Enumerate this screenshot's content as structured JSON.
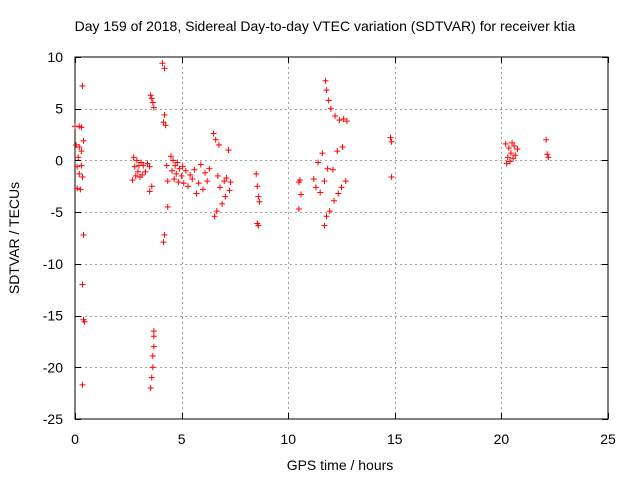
{
  "chart_data": {
    "type": "scatter",
    "title": "Day 159 of 2018, Sidereal Day-to-day VTEC variation (SDTVAR) for receiver ktia",
    "xlabel": "GPS time / hours",
    "ylabel": "SDTVAR / TECUs",
    "xlim": [
      0,
      25
    ],
    "ylim": [
      -25,
      10
    ],
    "xticks": [
      0,
      5,
      10,
      15,
      20,
      25
    ],
    "yticks": [
      -25,
      -20,
      -15,
      -10,
      -5,
      0,
      5,
      10
    ],
    "grid": true,
    "legend": "none",
    "marker": "plus",
    "series": [
      {
        "name": "ktia",
        "color": "#ff0000",
        "points": [
          [
            0.0,
            3.3
          ],
          [
            0.05,
            1.5
          ],
          [
            0.1,
            -0.6
          ],
          [
            0.1,
            -2.7
          ],
          [
            0.15,
            0.3
          ],
          [
            0.2,
            3.3
          ],
          [
            0.2,
            1.3
          ],
          [
            0.2,
            -1.3
          ],
          [
            0.25,
            -2.8
          ],
          [
            0.3,
            3.2
          ],
          [
            0.3,
            0.9
          ],
          [
            0.3,
            -0.5
          ],
          [
            0.35,
            7.2
          ],
          [
            0.35,
            -1.6
          ],
          [
            0.35,
            -12.0
          ],
          [
            0.35,
            -21.7
          ],
          [
            0.4,
            1.9
          ],
          [
            0.4,
            -7.2
          ],
          [
            0.4,
            -15.4
          ],
          [
            0.45,
            -15.6
          ],
          [
            2.7,
            -1.9
          ],
          [
            2.75,
            0.3
          ],
          [
            2.8,
            -0.6
          ],
          [
            2.85,
            -1.5
          ],
          [
            2.9,
            0.0
          ],
          [
            2.95,
            -1.1
          ],
          [
            3.0,
            -0.5
          ],
          [
            3.05,
            -1.6
          ],
          [
            3.1,
            -0.2
          ],
          [
            3.15,
            -1.4
          ],
          [
            3.2,
            -0.5
          ],
          [
            3.3,
            -1.1
          ],
          [
            3.4,
            -0.3
          ],
          [
            3.5,
            -0.6
          ],
          [
            3.5,
            -3.0
          ],
          [
            3.55,
            6.3
          ],
          [
            3.55,
            -22.0
          ],
          [
            3.6,
            6.0
          ],
          [
            3.6,
            -2.5
          ],
          [
            3.6,
            -21.0
          ],
          [
            3.65,
            5.6
          ],
          [
            3.65,
            -20.0
          ],
          [
            3.65,
            -18.9
          ],
          [
            3.7,
            5.1
          ],
          [
            3.7,
            -18.0
          ],
          [
            3.7,
            -17.0
          ],
          [
            3.7,
            -16.5
          ],
          [
            4.1,
            9.4
          ],
          [
            4.15,
            3.7
          ],
          [
            4.15,
            -7.9
          ],
          [
            4.2,
            8.9
          ],
          [
            4.2,
            4.4
          ],
          [
            4.2,
            -7.2
          ],
          [
            4.25,
            3.4
          ],
          [
            4.3,
            -0.5
          ],
          [
            4.35,
            -4.5
          ],
          [
            4.35,
            -2.0
          ],
          [
            4.5,
            0.4
          ],
          [
            4.55,
            -1.0
          ],
          [
            4.6,
            0.0
          ],
          [
            4.65,
            -1.8
          ],
          [
            4.7,
            -0.5
          ],
          [
            4.75,
            -1.3
          ],
          [
            4.8,
            -0.2
          ],
          [
            4.85,
            -2.1
          ],
          [
            4.9,
            -0.8
          ],
          [
            5.0,
            -1.5
          ],
          [
            5.05,
            -0.6
          ],
          [
            5.1,
            -2.2
          ],
          [
            5.2,
            -1.0
          ],
          [
            5.3,
            -2.5
          ],
          [
            5.4,
            -1.4
          ],
          [
            5.5,
            -1.8
          ],
          [
            5.6,
            -0.9
          ],
          [
            5.7,
            -3.2
          ],
          [
            5.8,
            -2.2
          ],
          [
            5.9,
            -0.4
          ],
          [
            6.0,
            -2.8
          ],
          [
            6.1,
            -1.2
          ],
          [
            6.2,
            -2.0
          ],
          [
            6.3,
            -0.8
          ],
          [
            6.5,
            2.6
          ],
          [
            6.55,
            -5.4
          ],
          [
            6.6,
            2.0
          ],
          [
            6.65,
            -4.9
          ],
          [
            6.7,
            -1.5
          ],
          [
            6.75,
            1.5
          ],
          [
            6.8,
            -2.6
          ],
          [
            6.9,
            -4.2
          ],
          [
            7.0,
            -2.0
          ],
          [
            7.05,
            -3.5
          ],
          [
            7.1,
            -1.7
          ],
          [
            7.2,
            1.0
          ],
          [
            7.25,
            -2.9
          ],
          [
            7.3,
            -2.1
          ],
          [
            8.5,
            -1.3
          ],
          [
            8.55,
            -2.5
          ],
          [
            8.55,
            -6.1
          ],
          [
            8.6,
            -3.5
          ],
          [
            8.6,
            -6.3
          ],
          [
            8.65,
            -4.0
          ],
          [
            10.5,
            -2.1
          ],
          [
            10.5,
            -4.7
          ],
          [
            10.55,
            -1.9
          ],
          [
            10.6,
            -3.3
          ],
          [
            11.2,
            -1.8
          ],
          [
            11.3,
            -2.6
          ],
          [
            11.4,
            -0.2
          ],
          [
            11.5,
            -3.1
          ],
          [
            11.6,
            0.7
          ],
          [
            11.7,
            -2.0
          ],
          [
            11.7,
            -6.3
          ],
          [
            11.75,
            7.7
          ],
          [
            11.8,
            6.8
          ],
          [
            11.8,
            -5.4
          ],
          [
            11.85,
            -0.8
          ],
          [
            11.9,
            5.8
          ],
          [
            11.95,
            -4.9
          ],
          [
            12.0,
            5.0
          ],
          [
            12.1,
            -0.9
          ],
          [
            12.15,
            -3.9
          ],
          [
            12.2,
            4.3
          ],
          [
            12.3,
            0.9
          ],
          [
            12.35,
            -3.2
          ],
          [
            12.4,
            3.9
          ],
          [
            12.5,
            -2.6
          ],
          [
            12.55,
            1.3
          ],
          [
            12.6,
            4.0
          ],
          [
            12.7,
            -2.0
          ],
          [
            12.75,
            3.8
          ],
          [
            14.8,
            2.2
          ],
          [
            14.85,
            1.8
          ],
          [
            14.85,
            -1.6
          ],
          [
            20.2,
            1.6
          ],
          [
            20.25,
            -0.3
          ],
          [
            20.3,
            0.3
          ],
          [
            20.35,
            1.2
          ],
          [
            20.4,
            -0.1
          ],
          [
            20.45,
            0.7
          ],
          [
            20.5,
            1.7
          ],
          [
            20.55,
            0.2
          ],
          [
            20.6,
            1.4
          ],
          [
            20.65,
            0.5
          ],
          [
            20.75,
            1.1
          ],
          [
            22.1,
            2.0
          ],
          [
            22.15,
            0.6
          ],
          [
            22.2,
            0.3
          ]
        ]
      }
    ]
  }
}
